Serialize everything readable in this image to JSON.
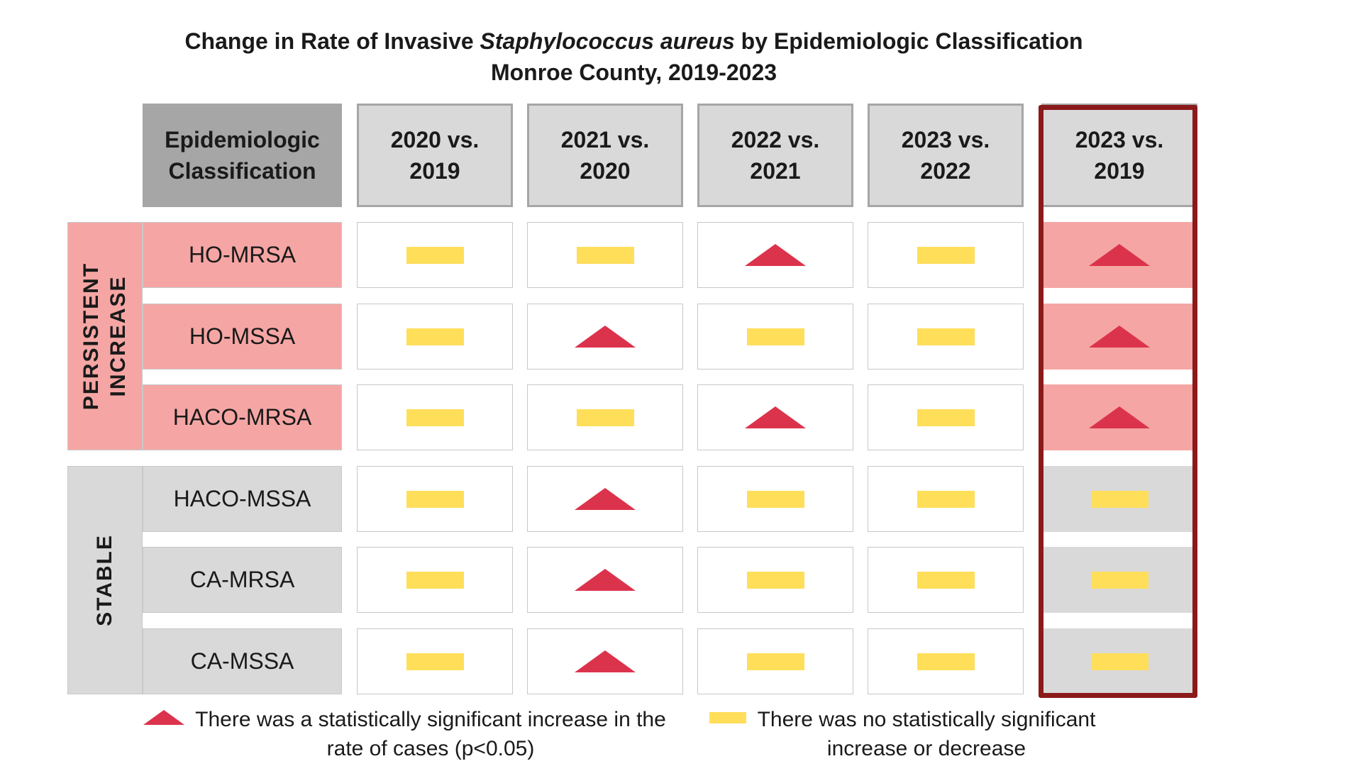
{
  "chart_data": {
    "type": "table",
    "title_prefix": "Change in Rate of Invasive ",
    "title_italic": "Staphylococcus aureus",
    "title_suffix": " by Epidemiologic Classification",
    "subtitle": "Monroe County, 2019-2023",
    "corner_header": "Epidemiologic\nClassification",
    "columns": [
      "2020 vs.\n2019",
      "2021 vs.\n2020",
      "2022 vs.\n2021",
      "2023 vs.\n2022",
      "2023 vs.\n2019"
    ],
    "highlighted_column": "2023 vs.\n2019",
    "groups": [
      {
        "name": "PERSISTENT\nINCREASE",
        "style": "increase",
        "rows": [
          {
            "label": "HO-MRSA",
            "values": [
              "no_change",
              "no_change",
              "increase",
              "no_change",
              "increase"
            ]
          },
          {
            "label": "HO-MSSA",
            "values": [
              "no_change",
              "increase",
              "no_change",
              "no_change",
              "increase"
            ]
          },
          {
            "label": "HACO-MRSA",
            "values": [
              "no_change",
              "no_change",
              "increase",
              "no_change",
              "increase"
            ]
          }
        ]
      },
      {
        "name": "STABLE",
        "style": "stable",
        "rows": [
          {
            "label": "HACO-MSSA",
            "values": [
              "no_change",
              "increase",
              "no_change",
              "no_change",
              "no_change"
            ]
          },
          {
            "label": "CA-MRSA",
            "values": [
              "no_change",
              "increase",
              "no_change",
              "no_change",
              "no_change"
            ]
          },
          {
            "label": "CA-MSSA",
            "values": [
              "no_change",
              "increase",
              "no_change",
              "no_change",
              "no_change"
            ]
          }
        ]
      }
    ],
    "legend": [
      {
        "symbol": "increase",
        "text": "There was a statistically significant increase in the\nrate of cases (p<0.05)"
      },
      {
        "symbol": "no_change",
        "text": "There was no statistically significant\nincrease or decrease"
      }
    ]
  },
  "colors": {
    "increase_symbol": "#dc334d",
    "no_change_symbol": "#ffde5a",
    "increase_fill": "#f5a6a4",
    "stable_fill": "#d9d9d9",
    "header_fill": "#d9d9d9",
    "corner_header_fill": "#a6a6a6",
    "highlight_border": "#8b1a1a"
  },
  "icons": {
    "increase": "red-up-triangle-icon",
    "no_change": "yellow-dash-icon"
  }
}
